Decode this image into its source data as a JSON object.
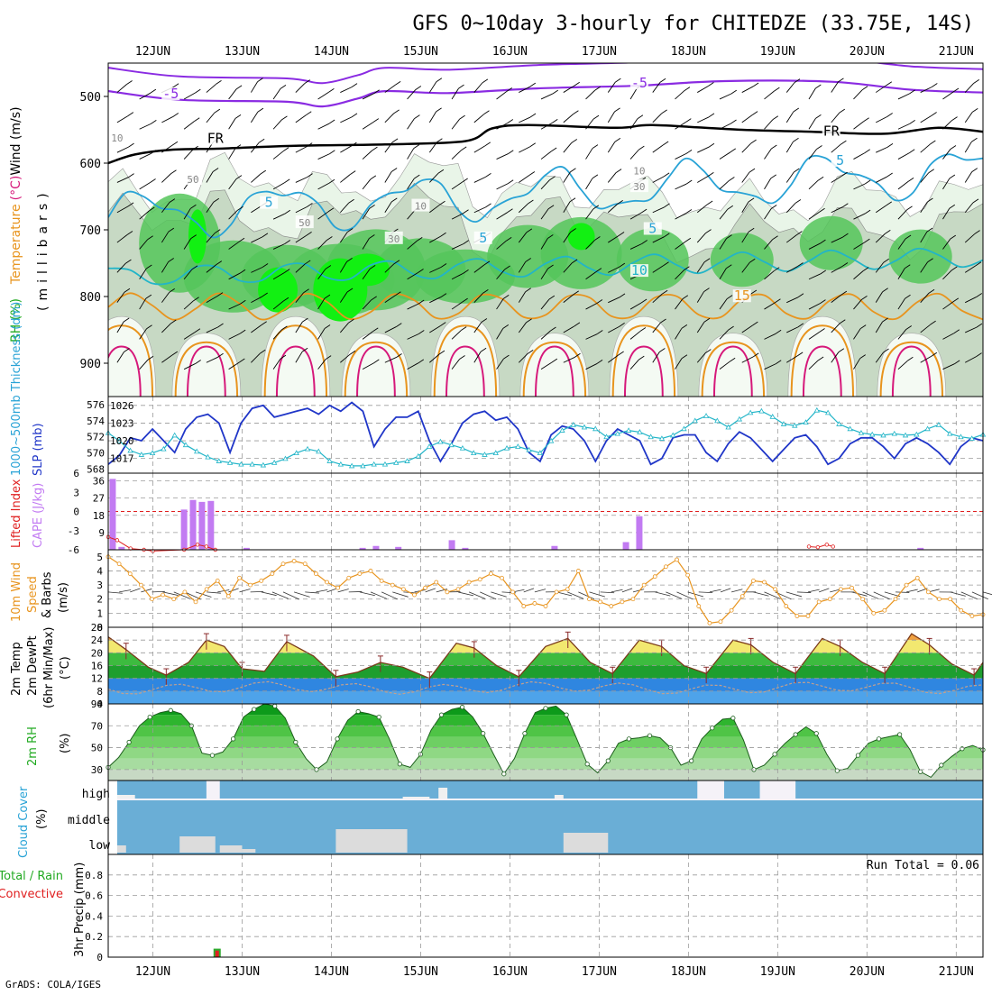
{
  "title": "GFS 0~10day 3-hourly for CHITEDZE (33.75E, 14S)",
  "footer": "GrADS: COLA/IGES",
  "colors": {
    "grid": "#9a9a9a",
    "purple": "#8a2be2",
    "cyan": "#29a3d6",
    "teal": "#22b5c8",
    "orange": "#e8941e",
    "magenta": "#d6187a",
    "rh_light": "#e9f5e8",
    "rh_mid": "#c7d9c4",
    "rh_green": "#55c65a",
    "rh_bright": "#12f012",
    "blue": "#2036c8",
    "violet": "#c27bf2",
    "red": "#e02020",
    "cloud": "#6aaed6",
    "cloud_fill": "#dcdcdc"
  },
  "chart_data": {
    "type": "meteogram",
    "x_axis": {
      "ticks": [
        "12JUN",
        "13JUN",
        "14JUN",
        "15JUN",
        "16JUN",
        "17JUN",
        "18JUN",
        "19JUN",
        "20JUN",
        "21JUN"
      ],
      "range_days": [
        11.5,
        21.3
      ]
    },
    "panels": [
      {
        "name": "upper-air",
        "ylabel": "(millibars)",
        "legend": [
          "Wind (m/s)",
          "Temperature (°C)",
          "RH (%)"
        ],
        "yticks": [
          "500",
          "600",
          "700",
          "800",
          "900"
        ],
        "ylim": [
          450,
          950
        ],
        "contour_labels": [
          {
            "text": "-5",
            "x": 12.2,
            "y": 500,
            "color": "purple"
          },
          {
            "text": "-5",
            "x": 17.45,
            "y": 484,
            "color": "purple"
          },
          {
            "text": "FR",
            "x": 12.7,
            "y": 567,
            "color": "black"
          },
          {
            "text": "FR",
            "x": 19.6,
            "y": 556,
            "color": "black"
          },
          {
            "text": "5",
            "x": 19.7,
            "y": 600,
            "color": "cyan"
          },
          {
            "text": "5",
            "x": 13.3,
            "y": 663,
            "color": "cyan"
          },
          {
            "text": "5",
            "x": 15.7,
            "y": 716,
            "color": "cyan"
          },
          {
            "text": "5",
            "x": 17.6,
            "y": 702,
            "color": "cyan"
          },
          {
            "text": "10",
            "x": 17.45,
            "y": 765,
            "color": "teal"
          },
          {
            "text": "15",
            "x": 18.6,
            "y": 803,
            "color": "orange"
          },
          {
            "text": "50",
            "x": 12.45,
            "y": 627,
            "color": "gray"
          },
          {
            "text": "50",
            "x": 13.7,
            "y": 692,
            "color": "gray"
          },
          {
            "text": "30",
            "x": 14.7,
            "y": 716,
            "color": "gray"
          },
          {
            "text": "10",
            "x": 17.45,
            "y": 614,
            "color": "gray"
          },
          {
            "text": "30",
            "x": 17.45,
            "y": 638,
            "color": "gray"
          },
          {
            "text": "10",
            "x": 15.0,
            "y": 667,
            "color": "gray"
          },
          {
            "text": "10",
            "x": 11.6,
            "y": 565,
            "color": "gray"
          }
        ],
        "temp_lines": {
          "neg5": [
            [
              11.5,
              492
            ],
            [
              12.3,
              505
            ],
            [
              13.5,
              508
            ],
            [
              13.9,
              515
            ],
            [
              14.3,
              503
            ],
            [
              14.6,
              492
            ],
            [
              15.3,
              495
            ],
            [
              16.3,
              488
            ],
            [
              17.4,
              484
            ],
            [
              18.4,
              477
            ],
            [
              19.6,
              478
            ],
            [
              20.5,
              490
            ],
            [
              21.3,
              494
            ]
          ],
          "freezing": [
            [
              11.5,
              600
            ],
            [
              11.8,
              587
            ],
            [
              12.2,
              580
            ],
            [
              12.8,
              578
            ],
            [
              13.6,
              574
            ],
            [
              14.6,
              572
            ],
            [
              15.5,
              567
            ],
            [
              15.8,
              548
            ],
            [
              16.2,
              543
            ],
            [
              17.2,
              547
            ],
            [
              17.6,
              543
            ],
            [
              18.6,
              550
            ],
            [
              19.4,
              553
            ],
            [
              20.2,
              556
            ],
            [
              20.8,
              547
            ],
            [
              21.3,
              553
            ]
          ]
        },
        "rh_peaks_pct": [
          70,
          90,
          70,
          95,
          70,
          75,
          60,
          55,
          70,
          65
        ]
      },
      {
        "name": "thickness-slp",
        "legend": [
          "1000~500mb Thickness (dm)",
          "SLP (mb)"
        ],
        "left_ticks": [
          "568",
          "570",
          "572",
          "574",
          "576"
        ],
        "right_ticks": [
          "1017",
          "1020",
          "1023",
          "1026"
        ],
        "left_ylim": [
          567.5,
          577
        ],
        "right_ylim": [
          1014.5,
          1027.5
        ],
        "slp_mb": [
          1016,
          1017.5,
          1020.5,
          1020,
          1022,
          1020,
          1018,
          1022,
          1024,
          1024.5,
          1023,
          1018,
          1023,
          1025.5,
          1026,
          1024,
          1024.5,
          1025,
          1025.5,
          1024.5,
          1026,
          1025,
          1026.5,
          1025,
          1019,
          1022,
          1024,
          1024,
          1025,
          1020,
          1016.5,
          1019.5,
          1023,
          1024.5,
          1025,
          1023.5,
          1024,
          1022,
          1018,
          1016.5,
          1021,
          1022.5,
          1022,
          1020,
          1016.5,
          1020,
          1022,
          1021,
          1020,
          1016,
          1017,
          1020.5,
          1021,
          1021,
          1018,
          1016.5,
          1019.5,
          1021.5,
          1020.5,
          1018.5,
          1016.5,
          1018.5,
          1020.5,
          1021,
          1019,
          1016,
          1017,
          1019.5,
          1020.5,
          1020.5,
          1019,
          1017,
          1019.5,
          1020.5,
          1019.5,
          1018,
          1016,
          1019,
          1020.5,
          1020
        ],
        "thickness_dm": [
          572.5,
          571.5,
          570.3,
          569.8,
          570,
          570.5,
          572.2,
          571,
          570.2,
          569.5,
          569,
          568.8,
          568.6,
          568.6,
          568.5,
          568.8,
          569.3,
          570,
          570.5,
          570.2,
          569,
          568.6,
          568.4,
          568.4,
          568.6,
          568.6,
          568.8,
          569,
          569.6,
          570.8,
          571.4,
          571,
          570.6,
          570,
          569.8,
          570,
          570.6,
          570.8,
          570.4,
          570,
          571.5,
          572.8,
          573.5,
          573.2,
          573,
          572,
          572.4,
          572.8,
          572.6,
          572,
          571.8,
          572.2,
          573,
          574,
          574.6,
          574,
          573.2,
          574.2,
          575,
          575.2,
          574.5,
          573.6,
          573.4,
          573.8,
          575.3,
          575,
          573.6,
          573,
          572.5,
          572.3,
          572.2,
          572.4,
          572.2,
          572.3,
          573,
          573.5,
          572.4,
          572,
          571.8,
          572.3
        ]
      },
      {
        "name": "cape-li",
        "legend": [
          "Lifted Index",
          "CAPE (J/kg)"
        ],
        "left_ticks": [
          "6",
          "3",
          "0",
          "-3",
          "-6"
        ],
        "right_ticks": [
          "9",
          "18",
          "27",
          "36"
        ],
        "cape_ylim": [
          0,
          40
        ],
        "li_ylim": [
          6,
          -6
        ],
        "cape": [
          [
            11.55,
            37
          ],
          [
            11.65,
            1.5
          ],
          [
            12.35,
            21
          ],
          [
            12.45,
            26
          ],
          [
            12.55,
            25
          ],
          [
            12.65,
            25.5
          ],
          [
            13.05,
            1
          ],
          [
            14.35,
            1
          ],
          [
            14.5,
            2
          ],
          [
            14.75,
            1.5
          ],
          [
            15.35,
            5
          ],
          [
            15.5,
            1
          ],
          [
            16.5,
            2
          ],
          [
            17.3,
            4
          ],
          [
            17.45,
            17.5
          ],
          [
            20.6,
            1
          ]
        ],
        "li": [
          [
            11.5,
            4
          ],
          [
            11.6,
            4.5
          ],
          [
            11.75,
            5.8
          ],
          [
            11.9,
            6
          ],
          [
            12.0,
            6.2
          ],
          [
            12.35,
            6
          ],
          [
            12.5,
            5.2
          ],
          [
            12.6,
            5.5
          ],
          [
            12.7,
            6
          ],
          [
            19.35,
            5.5
          ],
          [
            19.45,
            5.6
          ],
          [
            19.55,
            5.2
          ],
          [
            19.62,
            5.5
          ]
        ]
      },
      {
        "name": "wind10m",
        "legend": [
          "10m Wind",
          "Speed",
          "& Barbs",
          "(m/s)"
        ],
        "yticks": [
          "0",
          "1",
          "2",
          "3",
          "4",
          "5"
        ],
        "ylim": [
          0,
          5.5
        ],
        "speed_ms": [
          5,
          4.5,
          3.8,
          3,
          2,
          2.3,
          2,
          2.5,
          1.8,
          2.7,
          3.3,
          2.2,
          3.5,
          3,
          3.3,
          3.8,
          4.5,
          4.7,
          4.5,
          3.8,
          3.2,
          2.8,
          3.5,
          3.8,
          4,
          3.3,
          3,
          2.7,
          2.3,
          2.8,
          3.2,
          2.5,
          2.7,
          3.2,
          3.4,
          3.8,
          3.5,
          2.5,
          1.5,
          1.7,
          1.5,
          2.5,
          2.7,
          4,
          2,
          1.8,
          1.5,
          1.8,
          2,
          3,
          3.6,
          4.3,
          4.8,
          3.7,
          1.5,
          0.3,
          0.4,
          1.2,
          2.2,
          3.3,
          3.2,
          2.7,
          1.5,
          0.8,
          0.8,
          1.8,
          2,
          2.7,
          2.8,
          2,
          1,
          1.2,
          2,
          3,
          3.5,
          2.5,
          2,
          2,
          1.2,
          0.8,
          0.9
        ]
      },
      {
        "name": "temperature",
        "legend": [
          "2m Temp",
          "2m DewPt",
          "(6hr Min/Max)",
          "(°C)"
        ],
        "yticks": [
          "4",
          "8",
          "12",
          "16",
          "20",
          "24",
          "28"
        ],
        "ylim": [
          4,
          28
        ],
        "max_c": [
          [
            11.5,
            25
          ],
          [
            11.7,
            21
          ],
          [
            11.95,
            15.5
          ],
          [
            12.15,
            13
          ],
          [
            12.4,
            17
          ],
          [
            12.6,
            24
          ],
          [
            12.8,
            22
          ],
          [
            13.0,
            15
          ],
          [
            13.25,
            14.2
          ],
          [
            13.5,
            23.5
          ],
          [
            13.8,
            19
          ],
          [
            14.05,
            12.5
          ],
          [
            14.3,
            14
          ],
          [
            14.55,
            17
          ],
          [
            14.8,
            15.5
          ],
          [
            15.1,
            12
          ],
          [
            15.4,
            23
          ],
          [
            15.6,
            21.5
          ],
          [
            15.85,
            16
          ],
          [
            16.1,
            12.5
          ],
          [
            16.4,
            22
          ],
          [
            16.65,
            24.5
          ],
          [
            16.9,
            17
          ],
          [
            17.15,
            13.5
          ],
          [
            17.45,
            24
          ],
          [
            17.7,
            22
          ],
          [
            17.95,
            16
          ],
          [
            18.2,
            13.5
          ],
          [
            18.5,
            24
          ],
          [
            18.7,
            22.5
          ],
          [
            18.95,
            17
          ],
          [
            19.2,
            13.5
          ],
          [
            19.5,
            24.5
          ],
          [
            19.7,
            22
          ],
          [
            19.95,
            17
          ],
          [
            20.2,
            13.5
          ],
          [
            20.5,
            26
          ],
          [
            20.7,
            22.5
          ],
          [
            20.95,
            16.5
          ],
          [
            21.2,
            13
          ],
          [
            21.3,
            17
          ]
        ]
      },
      {
        "name": "rh2m",
        "legend": [
          "2m RH",
          "(%)"
        ],
        "yticks": [
          "30",
          "50",
          "70",
          "90"
        ],
        "ylim": [
          20,
          90
        ],
        "rh_pct": [
          32,
          41,
          55,
          70,
          78,
          82,
          84,
          81,
          70,
          45,
          43,
          46,
          58,
          78,
          85,
          90,
          88,
          77,
          55,
          40,
          30,
          37,
          58,
          75,
          83,
          81,
          78,
          58,
          35,
          32,
          44,
          66,
          80,
          85,
          87,
          78,
          63,
          44,
          26,
          40,
          63,
          82,
          86,
          88,
          80,
          58,
          35,
          27,
          38,
          54,
          58,
          59,
          61,
          59,
          50,
          34,
          38,
          58,
          68,
          76,
          77,
          57,
          30,
          34,
          44,
          54,
          62,
          69,
          63,
          44,
          29,
          31,
          43,
          54,
          58,
          60,
          62,
          48,
          28,
          23,
          34,
          42,
          49,
          52,
          48
        ]
      },
      {
        "name": "cloud-cover",
        "legend": [
          "Cloud Cover",
          "(%)"
        ],
        "levels": [
          "high",
          "middle",
          "low"
        ]
      },
      {
        "name": "precip",
        "legend": [
          "Total / Rain",
          "Convective",
          "3hr Precip (mm)"
        ],
        "yticks": [
          "0",
          "0.2",
          "0.4",
          "0.6",
          "0.8"
        ],
        "ylim": [
          0,
          1
        ],
        "run_total_label": "Run Total = 0.06",
        "bars": [
          {
            "x": 12.72,
            "total": 0.03,
            "convective": 0.02
          }
        ]
      }
    ]
  }
}
